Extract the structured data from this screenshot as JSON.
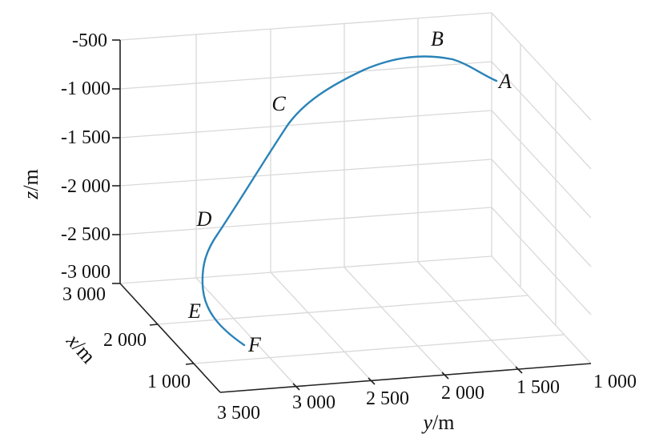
{
  "chart_data": {
    "type": "line3d",
    "title": "",
    "zlabel_var": "z",
    "zlabel_unit": "/m",
    "xlabel_var": "x",
    "xlabel_unit": "/m",
    "ylabel_var": "y",
    "ylabel_unit": "/m",
    "z_ticks": [
      "-500",
      "-1 000",
      "-1 500",
      "-2 000",
      "-2 500",
      "-3 000"
    ],
    "x_ticks": [
      "3 000",
      "2 000",
      "1 000"
    ],
    "y_ticks": [
      "3 500",
      "3 000",
      "2 500",
      "2 000",
      "1 500",
      "1 000"
    ],
    "zlim": [
      -3000,
      -500
    ],
    "grid": true,
    "line_color": "#2a83b8",
    "points": [
      {
        "label": "A"
      },
      {
        "label": "B"
      },
      {
        "label": "C"
      },
      {
        "label": "D"
      },
      {
        "label": "E"
      },
      {
        "label": "F"
      }
    ]
  }
}
